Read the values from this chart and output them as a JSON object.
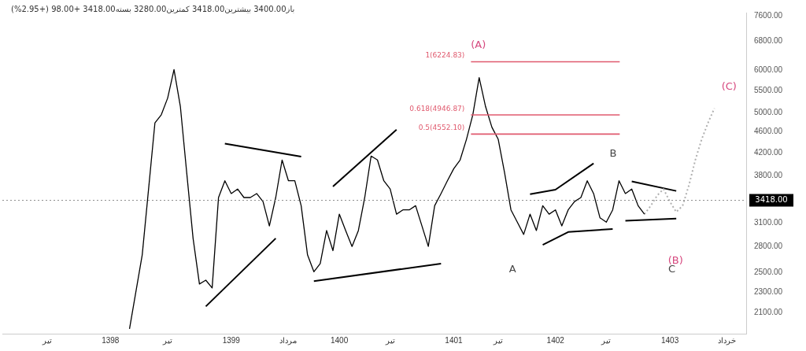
{
  "chart_data": {
    "type": "line",
    "title": "باز3400.00 بیشترین3418.00 کمترین3280.00 بسته3418.00 +98.00 (+2.95%)",
    "categories": [
      null,
      null,
      null,
      null,
      null,
      null,
      null,
      "تیر",
      null,
      null,
      null,
      null,
      null,
      null,
      null,
      null,
      null,
      "1398",
      null,
      null,
      null,
      null,
      null,
      null,
      null,
      null,
      "تیر",
      null,
      null,
      null,
      null,
      null,
      null,
      null,
      null,
      null,
      "1399",
      null,
      null,
      null,
      null,
      null,
      null,
      null,
      null,
      "مرداد",
      null,
      null,
      null,
      null,
      null,
      null,
      null,
      "1400",
      null,
      null,
      null,
      null,
      null,
      null,
      null,
      "تیر",
      null,
      null,
      null,
      null,
      null,
      null,
      null,
      null,
      null,
      "1401",
      null,
      null,
      null,
      null,
      null,
      null,
      "تیر",
      null,
      null,
      null,
      null,
      null,
      null,
      null,
      null,
      "1402",
      null,
      null,
      null,
      null,
      null,
      null,
      null,
      "تیر",
      null,
      null,
      null,
      null,
      null,
      null,
      null,
      null,
      null,
      "1403",
      null,
      null,
      null,
      null,
      null,
      null,
      null,
      null,
      "خرداد",
      null,
      null,
      null
    ],
    "ylim": [
      1920,
      7700
    ],
    "log": true,
    "yticks": [
      {
        "value": 2100,
        "label": "2100.00"
      },
      {
        "value": 2300,
        "label": "2300.00"
      },
      {
        "value": 2500,
        "label": "2500.00"
      },
      {
        "value": 2800,
        "label": "2800.00"
      },
      {
        "value": 3100,
        "label": "3100.00"
      },
      {
        "value": 3800,
        "label": "3800.00"
      },
      {
        "value": 4200,
        "label": "4200.00"
      },
      {
        "value": 4600,
        "label": "4600.00"
      },
      {
        "value": 5000,
        "label": "5000.00"
      },
      {
        "value": 5500,
        "label": "5500.00"
      },
      {
        "value": 6000,
        "label": "6000.00"
      },
      {
        "value": 6800,
        "label": "6800.00"
      },
      {
        "value": 7600,
        "label": "7600.00"
      }
    ],
    "marker": "none",
    "grid": false,
    "legend": false,
    "series": [
      {
        "color": "#000000",
        "values": [
          null,
          null,
          null,
          null,
          null,
          null,
          null,
          null,
          null,
          null,
          null,
          null,
          null,
          null,
          null,
          null,
          null,
          null,
          null,
          null,
          1960,
          2300,
          2700,
          3590,
          4780,
          4950,
          5320,
          6020,
          5130,
          3850,
          2900,
          2380,
          2420,
          2340,
          3460,
          3720,
          3520,
          3590,
          3460,
          3460,
          3520,
          3400,
          3060,
          3460,
          4070,
          3720,
          3720,
          3340,
          2700,
          2510,
          2600,
          3000,
          2750,
          3220,
          3000,
          2800,
          3000,
          3460,
          4140,
          4070,
          3720,
          3590,
          3220,
          3280,
          3280,
          3340,
          3060,
          2800,
          3340,
          3520,
          3720,
          3920,
          4070,
          4450,
          4950,
          5810,
          5130,
          4690,
          4450,
          3850,
          3280,
          3110,
          2950,
          3220,
          3000,
          3340,
          3220,
          3280,
          3060,
          3280,
          3400,
          3460,
          3720,
          3520,
          3170,
          3110,
          3280,
          3720,
          3520,
          3590,
          3340,
          3220,
          null,
          null,
          null,
          null,
          null,
          null,
          null,
          null,
          null,
          null,
          null,
          null,
          null,
          null,
          null,
          null
        ]
      },
      {
        "color": "#b0b0b0",
        "line_style": "dotted",
        "values": [
          null,
          null,
          null,
          null,
          null,
          null,
          null,
          null,
          null,
          null,
          null,
          null,
          null,
          null,
          null,
          null,
          null,
          null,
          null,
          null,
          null,
          null,
          null,
          null,
          null,
          null,
          null,
          null,
          null,
          null,
          null,
          null,
          null,
          null,
          null,
          null,
          null,
          null,
          null,
          null,
          null,
          null,
          null,
          null,
          null,
          null,
          null,
          null,
          null,
          null,
          null,
          null,
          null,
          null,
          null,
          null,
          null,
          null,
          null,
          null,
          null,
          null,
          null,
          null,
          null,
          null,
          null,
          null,
          null,
          null,
          null,
          null,
          null,
          null,
          null,
          null,
          null,
          null,
          null,
          null,
          null,
          null,
          null,
          null,
          null,
          null,
          null,
          null,
          null,
          null,
          null,
          null,
          null,
          null,
          null,
          null,
          null,
          null,
          null,
          null,
          null,
          3220,
          3340,
          3490,
          3590,
          3400,
          3250,
          3340,
          3650,
          4070,
          4450,
          4780,
          5090,
          null,
          null,
          null,
          null,
          null
        ]
      },
      {
        "color": "#000000",
        "values": [
          null,
          null,
          null,
          null,
          null,
          null,
          null,
          null,
          null,
          null,
          null,
          null,
          null,
          null,
          null,
          null,
          null,
          null,
          null,
          null,
          null,
          null,
          null,
          null,
          null,
          null,
          null,
          null,
          null,
          null,
          null,
          null,
          2160,
          null,
          null,
          null,
          null,
          null,
          null,
          null,
          null,
          null,
          null,
          2900,
          null,
          null,
          null,
          null,
          null,
          null,
          null,
          null,
          null,
          null,
          null,
          null,
          null,
          null,
          null,
          null,
          null,
          null,
          null,
          null,
          null,
          null,
          null,
          null,
          null,
          null,
          null,
          null,
          null,
          null,
          null,
          null,
          null,
          null,
          null,
          null,
          null,
          null,
          null,
          null,
          null,
          null,
          null,
          null,
          null,
          null,
          null,
          null,
          null,
          null,
          null,
          null,
          null,
          null,
          null,
          null,
          null,
          null,
          null,
          null,
          null,
          null,
          null,
          null,
          null,
          null,
          null,
          null,
          null,
          null,
          null,
          null,
          null,
          null
        ]
      },
      {
        "color": "#000000",
        "values": [
          null,
          null,
          null,
          null,
          null,
          null,
          null,
          null,
          null,
          null,
          null,
          null,
          null,
          null,
          null,
          null,
          null,
          null,
          null,
          null,
          null,
          null,
          null,
          null,
          null,
          null,
          null,
          null,
          null,
          null,
          null,
          null,
          null,
          null,
          null,
          4370,
          null,
          null,
          null,
          null,
          null,
          null,
          null,
          null,
          null,
          null,
          null,
          4130,
          null,
          null,
          null,
          null,
          null,
          null,
          null,
          null,
          null,
          null,
          null,
          null,
          null,
          null,
          null,
          null,
          null,
          null,
          null,
          null,
          null,
          null,
          null,
          null,
          null,
          null,
          null,
          null,
          null,
          null,
          null,
          null,
          null,
          null,
          null,
          null,
          null,
          null,
          null,
          null,
          null,
          null,
          null,
          null,
          null,
          null,
          null,
          null,
          null,
          null,
          null,
          null,
          null,
          null,
          null,
          null,
          null,
          null,
          null,
          null,
          null,
          null,
          null,
          null,
          null,
          null,
          null,
          null,
          null,
          null
        ]
      },
      {
        "color": "#000000",
        "values": [
          null,
          null,
          null,
          null,
          null,
          null,
          null,
          null,
          null,
          null,
          null,
          null,
          null,
          null,
          null,
          null,
          null,
          null,
          null,
          null,
          null,
          null,
          null,
          null,
          null,
          null,
          null,
          null,
          null,
          null,
          null,
          null,
          null,
          null,
          null,
          null,
          null,
          null,
          null,
          null,
          null,
          null,
          null,
          null,
          null,
          null,
          null,
          null,
          null,
          2410,
          null,
          null,
          null,
          null,
          null,
          null,
          null,
          null,
          null,
          null,
          null,
          null,
          null,
          null,
          null,
          null,
          null,
          null,
          null,
          2600,
          null,
          null,
          null,
          null,
          null,
          null,
          null,
          null,
          null,
          null,
          null,
          null,
          null,
          null,
          null,
          null,
          null,
          null,
          null,
          null,
          null,
          null,
          null,
          null,
          null,
          null,
          null,
          null,
          null,
          null,
          null,
          null,
          null,
          null,
          null,
          null,
          null,
          null,
          null,
          null,
          null,
          null,
          null,
          null,
          null,
          null,
          null,
          null
        ]
      },
      {
        "color": "#000000",
        "values": [
          null,
          null,
          null,
          null,
          null,
          null,
          null,
          null,
          null,
          null,
          null,
          null,
          null,
          null,
          null,
          null,
          null,
          null,
          null,
          null,
          null,
          null,
          null,
          null,
          null,
          null,
          null,
          null,
          null,
          null,
          null,
          null,
          null,
          null,
          null,
          null,
          null,
          null,
          null,
          null,
          null,
          null,
          null,
          null,
          null,
          null,
          null,
          null,
          null,
          null,
          null,
          null,
          3630,
          null,
          null,
          null,
          null,
          null,
          null,
          null,
          null,
          null,
          4640,
          null,
          null,
          null,
          null,
          null,
          null,
          null,
          null,
          null,
          null,
          null,
          null,
          null,
          null,
          null,
          null,
          null,
          null,
          null,
          null,
          null,
          null,
          null,
          null,
          null,
          null,
          null,
          null,
          null,
          null,
          null,
          null,
          null,
          null,
          null,
          null,
          null,
          null,
          null,
          null,
          null,
          null,
          null,
          null,
          null,
          null,
          null,
          null,
          null,
          null,
          null,
          null,
          null,
          null,
          null
        ]
      },
      {
        "color": "#000000",
        "values": [
          null,
          null,
          null,
          null,
          null,
          null,
          null,
          null,
          null,
          null,
          null,
          null,
          null,
          null,
          null,
          null,
          null,
          null,
          null,
          null,
          null,
          null,
          null,
          null,
          null,
          null,
          null,
          null,
          null,
          null,
          null,
          null,
          null,
          null,
          null,
          null,
          null,
          null,
          null,
          null,
          null,
          null,
          null,
          null,
          null,
          null,
          null,
          null,
          null,
          null,
          null,
          null,
          null,
          null,
          null,
          null,
          null,
          null,
          null,
          null,
          null,
          null,
          null,
          null,
          null,
          null,
          null,
          null,
          null,
          null,
          null,
          null,
          null,
          null,
          null,
          null,
          null,
          null,
          null,
          null,
          null,
          null,
          null,
          3510,
          null,
          null,
          null,
          3580,
          null,
          null,
          null,
          null,
          null,
          4010,
          null,
          null,
          null,
          null,
          null,
          null,
          null,
          null,
          null,
          null,
          null,
          null,
          null,
          null,
          null,
          null,
          null,
          null,
          null,
          null,
          null,
          null,
          null,
          null
        ]
      },
      {
        "color": "#000000",
        "values": [
          null,
          null,
          null,
          null,
          null,
          null,
          null,
          null,
          null,
          null,
          null,
          null,
          null,
          null,
          null,
          null,
          null,
          null,
          null,
          null,
          null,
          null,
          null,
          null,
          null,
          null,
          null,
          null,
          null,
          null,
          null,
          null,
          null,
          null,
          null,
          null,
          null,
          null,
          null,
          null,
          null,
          null,
          null,
          null,
          null,
          null,
          null,
          null,
          null,
          null,
          null,
          null,
          null,
          null,
          null,
          null,
          null,
          null,
          null,
          null,
          null,
          null,
          null,
          null,
          null,
          null,
          null,
          null,
          null,
          null,
          null,
          null,
          null,
          null,
          null,
          null,
          null,
          null,
          null,
          null,
          null,
          null,
          null,
          null,
          null,
          2820,
          null,
          null,
          null,
          2980,
          null,
          null,
          null,
          null,
          null,
          null,
          3020,
          null,
          null,
          null,
          null,
          null,
          null,
          null,
          null,
          null,
          null,
          null,
          null,
          null,
          null,
          null,
          null,
          null,
          null,
          null,
          null,
          null
        ]
      },
      {
        "color": "#000000",
        "values": [
          null,
          null,
          null,
          null,
          null,
          null,
          null,
          null,
          null,
          null,
          null,
          null,
          null,
          null,
          null,
          null,
          null,
          null,
          null,
          null,
          null,
          null,
          null,
          null,
          null,
          null,
          null,
          null,
          null,
          null,
          null,
          null,
          null,
          null,
          null,
          null,
          null,
          null,
          null,
          null,
          null,
          null,
          null,
          null,
          null,
          null,
          null,
          null,
          null,
          null,
          null,
          null,
          null,
          null,
          null,
          null,
          null,
          null,
          null,
          null,
          null,
          null,
          null,
          null,
          null,
          null,
          null,
          null,
          null,
          null,
          null,
          null,
          null,
          null,
          null,
          null,
          null,
          null,
          null,
          null,
          null,
          null,
          null,
          null,
          null,
          null,
          null,
          null,
          null,
          null,
          null,
          null,
          null,
          null,
          null,
          null,
          null,
          null,
          null,
          3710,
          null,
          null,
          null,
          null,
          null,
          null,
          3560,
          null,
          null,
          null,
          null,
          null,
          null,
          null,
          null,
          null,
          null,
          null
        ]
      },
      {
        "color": "#000000",
        "values": [
          null,
          null,
          null,
          null,
          null,
          null,
          null,
          null,
          null,
          null,
          null,
          null,
          null,
          null,
          null,
          null,
          null,
          null,
          null,
          null,
          null,
          null,
          null,
          null,
          null,
          null,
          null,
          null,
          null,
          null,
          null,
          null,
          null,
          null,
          null,
          null,
          null,
          null,
          null,
          null,
          null,
          null,
          null,
          null,
          null,
          null,
          null,
          null,
          null,
          null,
          null,
          null,
          null,
          null,
          null,
          null,
          null,
          null,
          null,
          null,
          null,
          null,
          null,
          null,
          null,
          null,
          null,
          null,
          null,
          null,
          null,
          null,
          null,
          null,
          null,
          null,
          null,
          null,
          null,
          null,
          null,
          null,
          null,
          null,
          null,
          null,
          null,
          null,
          null,
          null,
          null,
          null,
          null,
          null,
          null,
          null,
          null,
          null,
          3130,
          null,
          null,
          null,
          null,
          null,
          null,
          null,
          3160,
          null,
          null,
          null,
          null,
          null,
          null,
          null,
          null,
          null,
          null,
          null
        ]
      }
    ],
    "ref_lines": [
      {
        "axis": "y",
        "value": 6224.83,
        "label": "1(6224.83)",
        "color": "#e05a6e"
      },
      {
        "axis": "y",
        "value": 4946.87,
        "label": "0.618(4946.87)",
        "color": "#e05a6e"
      },
      {
        "axis": "y",
        "value": 4552.1,
        "label": "0.5(4552.10)",
        "color": "#e05a6e"
      },
      {
        "axis": "y",
        "value": 3418,
        "label": "3418.00",
        "color": "#8a8a8a",
        "line_style": "dotted"
      }
    ],
    "annotations": [
      "(A)",
      "(B)",
      "(C)",
      "A",
      "B",
      "C"
    ]
  }
}
